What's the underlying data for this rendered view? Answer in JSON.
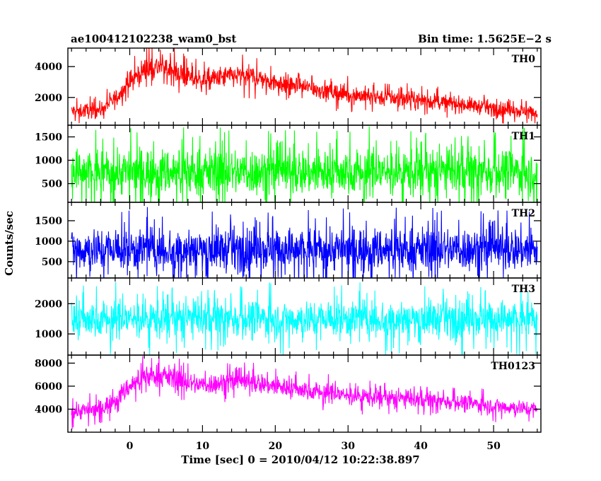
{
  "header": {
    "left_title": "ae100412102238_wam0_bst",
    "right_title": "Bin time: 1.5625E−2 s"
  },
  "axes": {
    "ylabel": "Counts/sec",
    "xlabel": "Time [sec] 0 = 2010/04/12 10:22:38.897"
  },
  "chart_data": {
    "type": "line",
    "x": {
      "range": [
        -8.5,
        56.5
      ],
      "ticks": [
        0,
        10,
        20,
        30,
        40,
        50
      ],
      "tick_labels": [
        "0",
        "10",
        "20",
        "30",
        "40",
        "50"
      ]
    },
    "panels": [
      {
        "name": "TH0",
        "color": "#ff0000",
        "ylim": [
          200,
          5200
        ],
        "y_ticks": [
          2000,
          4000
        ],
        "y_tick_labels": [
          "2000",
          "4000"
        ],
        "profile": {
          "x": [
            -8,
            -4,
            -2,
            0,
            2,
            4,
            6,
            8,
            10,
            14,
            17,
            20,
            25,
            30,
            35,
            40,
            45,
            50,
            56
          ],
          "mean": [
            1100,
            1200,
            1900,
            3000,
            3800,
            4000,
            3700,
            3300,
            3100,
            3400,
            3350,
            3000,
            2600,
            2200,
            2000,
            1800,
            1600,
            1300,
            1000
          ],
          "spread": [
            450,
            450,
            500,
            650,
            700,
            750,
            700,
            650,
            600,
            650,
            650,
            600,
            550,
            550,
            500,
            500,
            450,
            450,
            400
          ]
        }
      },
      {
        "name": "TH1",
        "color": "#00ff00",
        "ylim": [
          100,
          1750
        ],
        "y_ticks": [
          500,
          1000,
          1500
        ],
        "y_tick_labels": [
          "500",
          "1000",
          "1500"
        ],
        "profile": {
          "x": [
            -8,
            56
          ],
          "mean": [
            750,
            750
          ],
          "spread": [
            450,
            450
          ]
        }
      },
      {
        "name": "TH2",
        "color": "#0000ff",
        "ylim": [
          100,
          1950
        ],
        "y_ticks": [
          500,
          1000,
          1500
        ],
        "y_tick_labels": [
          "500",
          "1000",
          "1500"
        ],
        "profile": {
          "x": [
            -8,
            56
          ],
          "mean": [
            800,
            800
          ],
          "spread": [
            480,
            480
          ]
        }
      },
      {
        "name": "TH3",
        "color": "#00ffff",
        "ylim": [
          300,
          2850
        ],
        "y_ticks": [
          1000,
          2000
        ],
        "y_tick_labels": [
          "1000",
          "2000"
        ],
        "profile": {
          "x": [
            -8,
            56
          ],
          "mean": [
            1500,
            1500
          ],
          "spread": [
            560,
            560
          ]
        }
      },
      {
        "name": "TH0123",
        "color": "#ff00ff",
        "ylim": [
          2000,
          8700
        ],
        "y_ticks": [
          4000,
          6000,
          8000
        ],
        "y_tick_labels": [
          "4000",
          "6000",
          "8000"
        ],
        "profile": {
          "x": [
            -8,
            -4,
            -2,
            0,
            2,
            4,
            6,
            8,
            10,
            14,
            17,
            20,
            25,
            30,
            35,
            40,
            45,
            50,
            56
          ],
          "mean": [
            3800,
            4000,
            4800,
            6000,
            6800,
            7000,
            6700,
            6300,
            6100,
            6400,
            6350,
            6000,
            5600,
            5200,
            5000,
            4800,
            4600,
            4300,
            4000
          ],
          "spread": [
            700,
            700,
            750,
            850,
            900,
            950,
            900,
            850,
            800,
            850,
            850,
            800,
            750,
            750,
            700,
            700,
            650,
            650,
            600
          ]
        }
      }
    ]
  }
}
